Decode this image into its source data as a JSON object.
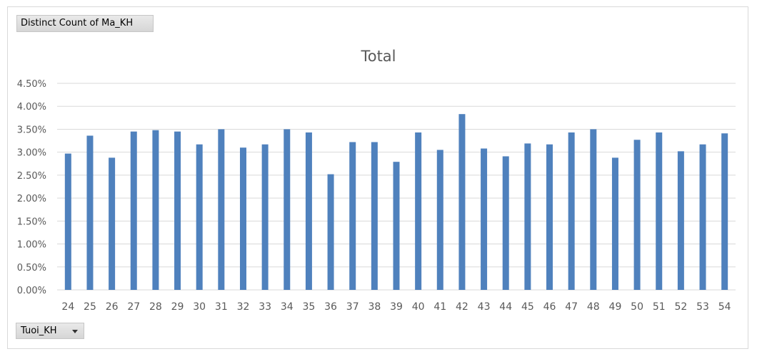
{
  "pivot": {
    "value_field_label": "Distinct  Count of Ma_KH",
    "axis_field_label": "Tuoi_KH"
  },
  "chart_data": {
    "type": "bar",
    "title": "Total",
    "xlabel": "",
    "ylabel": "",
    "categories": [
      "24",
      "25",
      "26",
      "27",
      "28",
      "29",
      "30",
      "31",
      "32",
      "33",
      "34",
      "35",
      "36",
      "37",
      "38",
      "39",
      "40",
      "41",
      "42",
      "43",
      "44",
      "45",
      "46",
      "47",
      "48",
      "49",
      "50",
      "51",
      "52",
      "53",
      "54"
    ],
    "values": [
      2.97,
      3.36,
      2.88,
      3.45,
      3.48,
      3.45,
      3.17,
      3.5,
      3.1,
      3.17,
      3.5,
      3.43,
      2.52,
      3.22,
      3.22,
      2.79,
      3.43,
      3.05,
      3.83,
      3.08,
      2.91,
      3.19,
      3.17,
      3.43,
      3.5,
      2.88,
      3.27,
      3.43,
      3.02,
      3.17,
      3.41
    ],
    "ylim": [
      0,
      4.5
    ],
    "yticks": [
      "0.00%",
      "0.50%",
      "1.00%",
      "1.50%",
      "2.00%",
      "2.50%",
      "3.00%",
      "3.50%",
      "4.00%",
      "4.50%"
    ],
    "gridlines": true,
    "bar_color": "#4f81bd",
    "grid_color": "#d9d9d9"
  }
}
